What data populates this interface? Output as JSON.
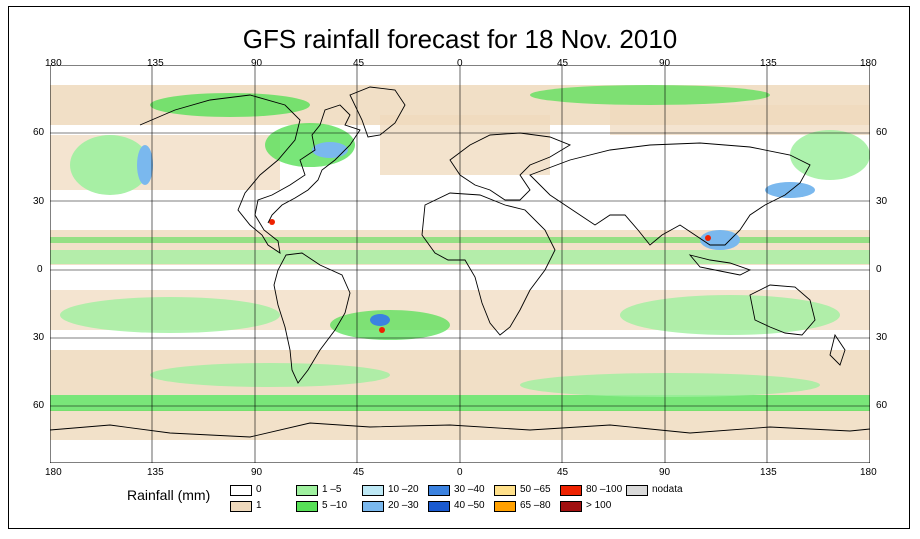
{
  "title": "GFS rainfall forecast for 18 Nov. 2010",
  "axes": {
    "lon_labels": [
      "180",
      "135",
      "90",
      "45",
      "0",
      "45",
      "90",
      "135",
      "180"
    ],
    "lat_labels": [
      "60",
      "30",
      "0",
      "30",
      "60"
    ]
  },
  "legend": {
    "title": "Rainfall (mm)",
    "items": [
      {
        "label": "0",
        "color": "#ffffff"
      },
      {
        "label": "1",
        "color": "#efd9bc"
      },
      {
        "label": "1 –5",
        "color": "#9ff09f"
      },
      {
        "label": "5 –10",
        "color": "#57e057"
      },
      {
        "label": "10 –20",
        "color": "#bde8f5"
      },
      {
        "label": "20 –30",
        "color": "#7ab8ee"
      },
      {
        "label": "30 –40",
        "color": "#3b82e0"
      },
      {
        "label": "40 –50",
        "color": "#1a5ad0"
      },
      {
        "label": "50 –65",
        "color": "#ffe08a"
      },
      {
        "label": "65 –80",
        "color": "#ffa000"
      },
      {
        "label": "80 –100",
        "color": "#ee2200"
      },
      {
        "label": "> 100",
        "color": "#a01010"
      },
      {
        "label": "nodata",
        "color": "#d9d9d9"
      }
    ]
  }
}
